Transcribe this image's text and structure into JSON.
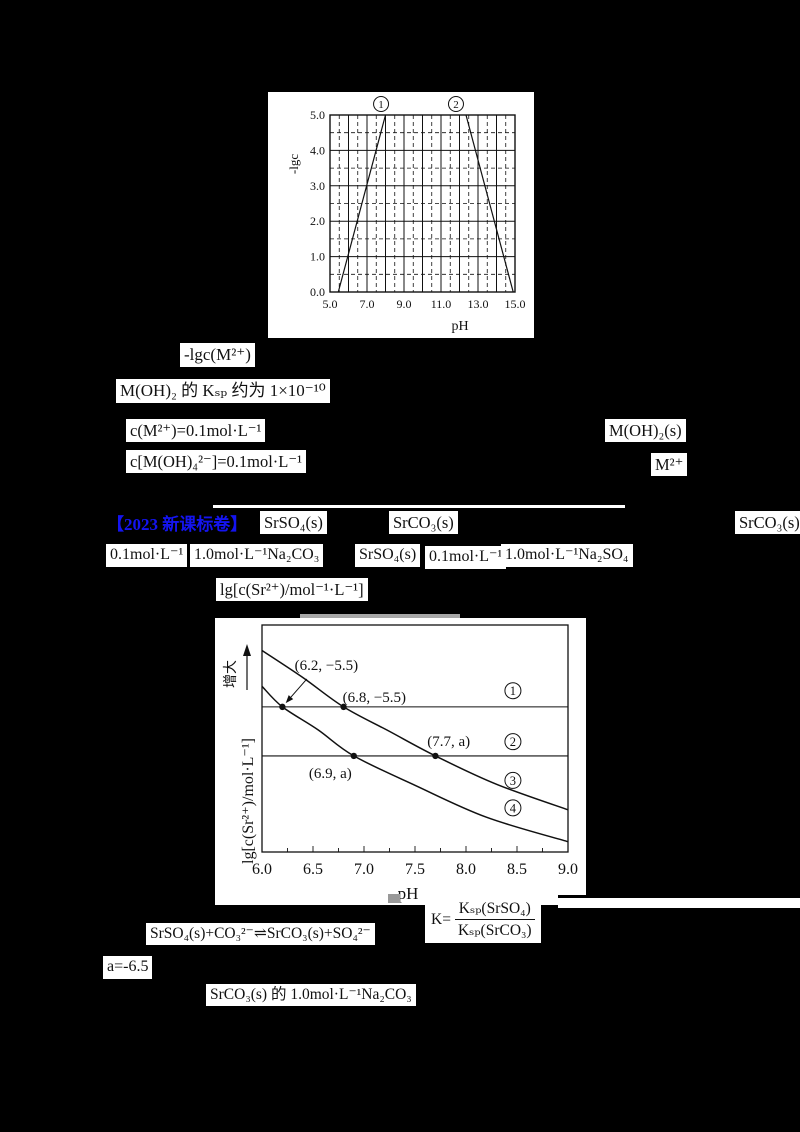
{
  "heading": {
    "text": "【2023 新课标卷】",
    "color": "#1414f0"
  },
  "fragments": [
    {
      "text": "-lgc(M²⁺)"
    },
    {
      "text": "M(OH)₂ 的 Kₛₚ 约为 1×10⁻¹⁰"
    },
    {
      "text": "c(M²⁺)=0.1mol·L⁻¹"
    },
    {
      "text": "M(OH)₂(s)"
    },
    {
      "text": "c[M(OH)₄²⁻]=0.1mol·L⁻¹"
    },
    {
      "text": "M²⁺"
    },
    {
      "text": "SrSO₄(s)"
    },
    {
      "text": "SrCO₃(s)"
    },
    {
      "text": "SrCO₃(s)"
    },
    {
      "text": "0.1mol·L⁻¹"
    },
    {
      "text": "1.0mol·L⁻¹Na₂CO₃"
    },
    {
      "text": "SrSO₄(s)"
    },
    {
      "text": "0.1mol·L⁻¹"
    },
    {
      "text": "1.0mol·L⁻¹Na₂SO₄"
    },
    {
      "text": "lg[c(Sr²⁺)/mol⁻¹·L⁻¹]"
    },
    {
      "text": "SrSO₄(s)+CO₃²⁻⇌SrCO₃(s)+SO₄²⁻"
    },
    {
      "text": "a=-6.5"
    },
    {
      "text": "SrCO₃(s) 的 1.0mol·L⁻¹Na₂CO₃"
    }
  ],
  "k_expression": {
    "prefix": "K=",
    "numerator": "Kₛₚ(SrSO₄)",
    "denominator": "Kₛₚ(SrCO₃)"
  },
  "chart_data": [
    {
      "type": "line",
      "title": "",
      "xlabel": "pH",
      "ylabel": "-lgc",
      "xlim": [
        5.0,
        15.0
      ],
      "ylim": [
        0.0,
        5.0
      ],
      "x_ticks": [
        "5.0",
        "7.0",
        "9.0",
        "11.0",
        "13.0",
        "15.0"
      ],
      "y_ticks": [
        "0.0",
        "1.0",
        "2.0",
        "3.0",
        "4.0",
        "5.0"
      ],
      "grid": {
        "major_step": 1.0,
        "minor_step": 0.5,
        "major_style": "solid",
        "minor_style": "dashed"
      },
      "series": [
        {
          "name": "①",
          "points": [
            [
              5.45,
              0.0
            ],
            [
              8.0,
              5.0
            ]
          ],
          "label_pos": [
            7.76,
            5.31
          ]
        },
        {
          "name": "②",
          "points": [
            [
              12.35,
              5.0
            ],
            [
              14.9,
              0.0
            ]
          ],
          "label_pos": [
            11.81,
            5.31
          ]
        }
      ]
    },
    {
      "type": "line",
      "title": "",
      "xlabel": "pH",
      "ylabel": "lg[c(Sr²⁺)/mol·L⁻¹]",
      "ylabel_arrow_text": "增大",
      "xlim": [
        6.0,
        9.0
      ],
      "ylim": [
        -8.46,
        -3.83
      ],
      "x_ticks": [
        "6.0",
        "6.5",
        "7.0",
        "7.5",
        "8.0",
        "8.5",
        "9.0"
      ],
      "grid": false,
      "series": [
        {
          "name": "①",
          "type": "hline",
          "y": -5.5
        },
        {
          "name": "②",
          "type": "hline",
          "y": -6.5,
          "y_label": "a"
        },
        {
          "name": "③",
          "type": "curve",
          "points": [
            [
              6.0,
              -4.35
            ],
            [
              6.4,
              -4.9
            ],
            [
              6.8,
              -5.5
            ],
            [
              7.25,
              -6.0
            ],
            [
              7.7,
              -6.5
            ],
            [
              8.3,
              -7.08
            ],
            [
              9.0,
              -7.6
            ]
          ]
        },
        {
          "name": "④",
          "type": "curve",
          "points": [
            [
              6.0,
              -5.08
            ],
            [
              6.2,
              -5.5
            ],
            [
              6.55,
              -5.97
            ],
            [
              6.9,
              -6.5
            ],
            [
              7.5,
              -7.1
            ],
            [
              8.2,
              -7.75
            ],
            [
              9.0,
              -8.25
            ]
          ]
        }
      ],
      "marked_points": [
        {
          "xy": [
            6.2,
            -5.5
          ],
          "label": "(6.2, −5.5)",
          "label_xy": [
            6.32,
            -4.75
          ],
          "arrow_from": [
            6.44,
            -4.93
          ]
        },
        {
          "xy": [
            6.8,
            -5.5
          ],
          "label": "(6.8, −5.5)",
          "label_xy": [
            6.79,
            -5.4
          ]
        },
        {
          "xy": [
            7.7,
            -6.5
          ],
          "label": "(7.7, a)",
          "label_xy": [
            7.62,
            -6.3
          ]
        },
        {
          "xy": [
            6.9,
            -6.5
          ],
          "label": "(6.9, a)",
          "label_xy": [
            6.46,
            -6.95
          ]
        }
      ],
      "series_labels": [
        {
          "name": "①",
          "xy": [
            8.46,
            -5.17
          ]
        },
        {
          "name": "②",
          "xy": [
            8.46,
            -6.21
          ]
        },
        {
          "name": "③",
          "xy": [
            8.46,
            -7.0
          ]
        },
        {
          "name": "④",
          "xy": [
            8.46,
            -7.56
          ]
        }
      ]
    }
  ]
}
